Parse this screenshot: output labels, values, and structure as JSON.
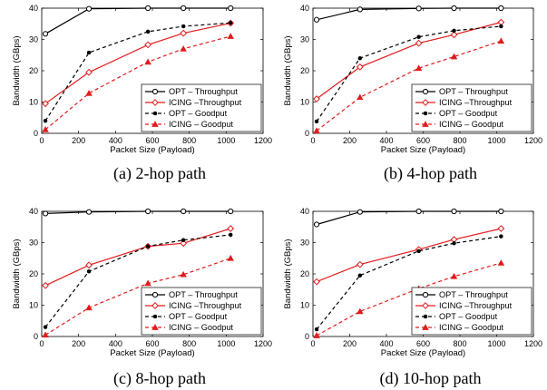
{
  "styles": {
    "OPT – Throughput": {
      "color": "#000000",
      "dash": "",
      "marker": "circle",
      "width": 1.2
    },
    "ICING –Throughput": {
      "color": "#e31a1c",
      "dash": "",
      "marker": "diamond",
      "width": 1.2
    },
    "OPT – Goodput": {
      "color": "#000000",
      "dash": "4,3",
      "marker": "dot",
      "width": 1.2
    },
    "ICING – Goodput": {
      "color": "#e31a1c",
      "dash": "4,3",
      "marker": "triangle",
      "width": 1.2
    }
  },
  "chart_data": [
    {
      "type": "line",
      "caption": "(a) 2-hop path",
      "xlabel": "Packet Size (Payload)",
      "ylabel": "Bandwidth (GBps)",
      "xlim": [
        0,
        1200
      ],
      "ylim": [
        0,
        40
      ],
      "xticks": [
        0,
        200,
        400,
        600,
        800,
        1000,
        1200
      ],
      "yticks": [
        0,
        10,
        20,
        30,
        40
      ],
      "x": [
        20,
        256,
        576,
        768,
        1024
      ],
      "series": [
        {
          "name": "OPT – Throughput",
          "values": [
            31.8,
            39.8,
            40,
            40,
            40
          ]
        },
        {
          "name": "ICING –Throughput",
          "values": [
            9.5,
            19.5,
            28.3,
            32.0,
            35.2
          ]
        },
        {
          "name": "OPT – Goodput",
          "values": [
            4.0,
            25.8,
            32.5,
            34.2,
            35.3
          ]
        },
        {
          "name": "ICING – Goodput",
          "values": [
            1.2,
            12.8,
            22.8,
            27.0,
            31.0
          ]
        }
      ]
    },
    {
      "type": "line",
      "caption": "(b) 4-hop path",
      "xlabel": "Packet Size (Payload)",
      "ylabel": "Bandwidth (GBps)",
      "xlim": [
        0,
        1200
      ],
      "ylim": [
        0,
        40
      ],
      "xticks": [
        0,
        200,
        400,
        600,
        800,
        1000,
        1200
      ],
      "yticks": [
        0,
        10,
        20,
        30,
        40
      ],
      "x": [
        20,
        256,
        576,
        768,
        1024
      ],
      "series": [
        {
          "name": "OPT – Throughput",
          "values": [
            36.3,
            39.6,
            39.9,
            40,
            40
          ]
        },
        {
          "name": "ICING –Throughput",
          "values": [
            11.0,
            21.2,
            28.8,
            31.5,
            35.5
          ]
        },
        {
          "name": "OPT – Goodput",
          "values": [
            3.8,
            24.0,
            30.8,
            32.8,
            34.2
          ]
        },
        {
          "name": "ICING – Goodput",
          "values": [
            0.8,
            11.5,
            20.8,
            24.5,
            29.5
          ]
        }
      ]
    },
    {
      "type": "line",
      "caption": "(c) 8-hop path",
      "xlabel": "Packet Size (Payload)",
      "ylabel": "Bandwidth (GBps)",
      "xlim": [
        0,
        1200
      ],
      "ylim": [
        0,
        40
      ],
      "xticks": [
        0,
        200,
        400,
        600,
        800,
        1000,
        1200
      ],
      "yticks": [
        0,
        10,
        20,
        30,
        40
      ],
      "x": [
        20,
        256,
        576,
        768,
        1024
      ],
      "series": [
        {
          "name": "OPT – Throughput",
          "values": [
            39.3,
            39.8,
            40,
            40,
            40
          ]
        },
        {
          "name": "ICING –Throughput",
          "values": [
            16.3,
            22.8,
            28.8,
            29.8,
            34.5
          ]
        },
        {
          "name": "OPT – Goodput",
          "values": [
            3.0,
            20.8,
            28.8,
            30.8,
            32.5
          ]
        },
        {
          "name": "ICING – Goodput",
          "values": [
            0.5,
            9.2,
            17.0,
            19.8,
            25.0
          ]
        }
      ]
    },
    {
      "type": "line",
      "caption": "(d) 10-hop path",
      "xlabel": "Packet Size (Payload)",
      "ylabel": "Bandwidth (GBps)",
      "xlim": [
        0,
        1200
      ],
      "ylim": [
        0,
        40
      ],
      "xticks": [
        0,
        200,
        400,
        600,
        800,
        1000,
        1200
      ],
      "yticks": [
        0,
        10,
        20,
        30,
        40
      ],
      "x": [
        20,
        256,
        576,
        768,
        1024
      ],
      "series": [
        {
          "name": "OPT – Throughput",
          "values": [
            35.8,
            39.8,
            40,
            40,
            40
          ]
        },
        {
          "name": "ICING –Throughput",
          "values": [
            17.5,
            23.0,
            27.8,
            31.0,
            34.5
          ]
        },
        {
          "name": "OPT – Goodput",
          "values": [
            2.3,
            19.5,
            27.3,
            29.8,
            32.0
          ]
        },
        {
          "name": "ICING – Goodput",
          "values": [
            0.3,
            8.0,
            15.3,
            19.2,
            23.5
          ]
        }
      ]
    }
  ]
}
